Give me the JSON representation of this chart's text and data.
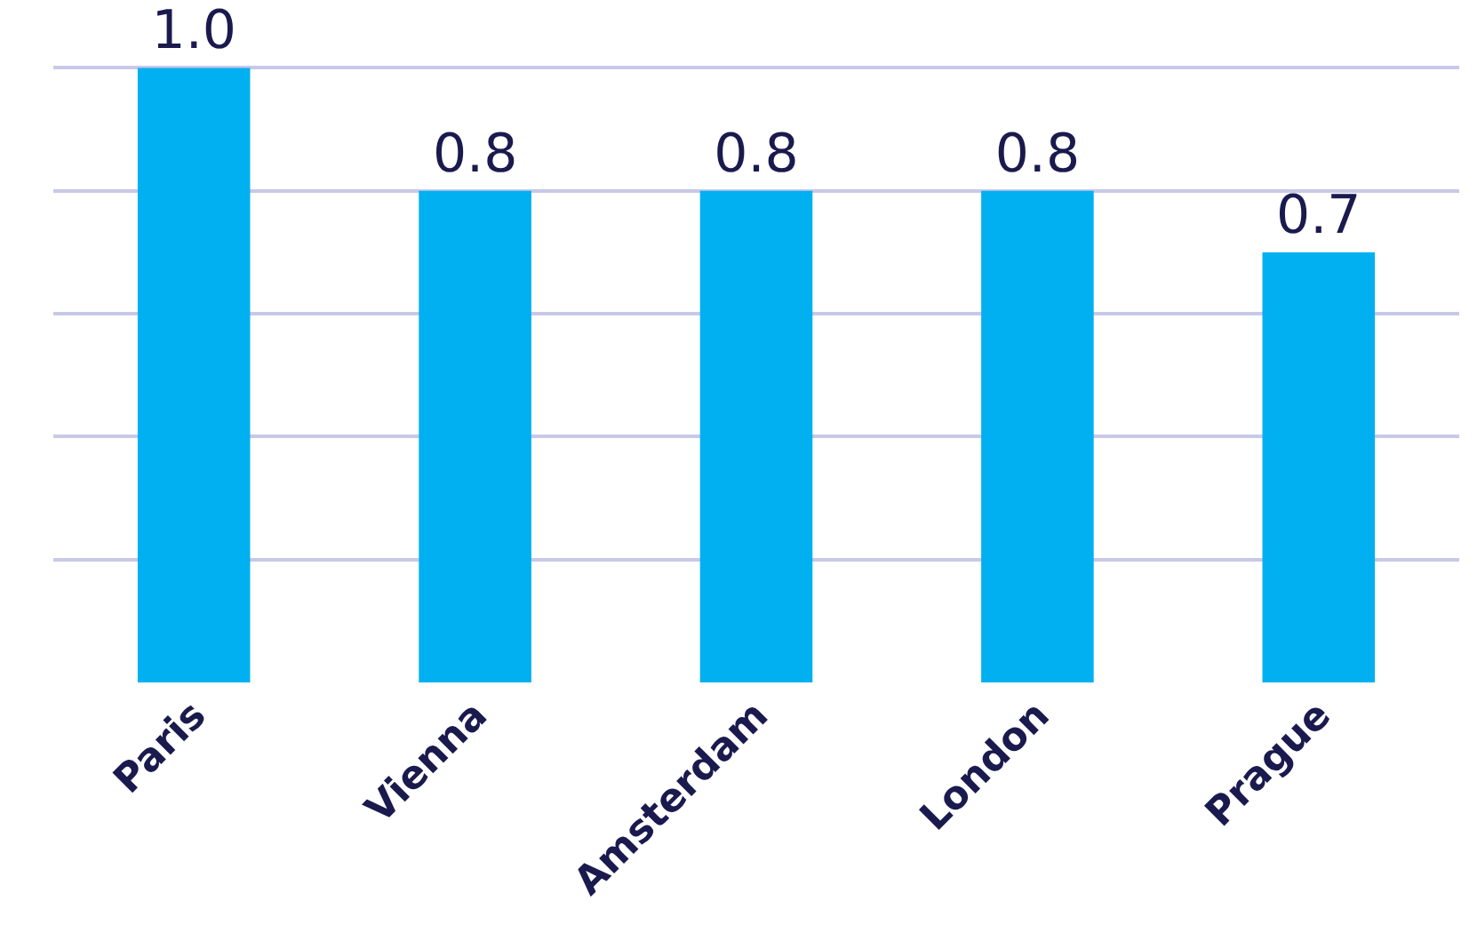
{
  "chart_data": {
    "type": "bar",
    "categories": [
      "Paris",
      "Vienna",
      "Amsterdam",
      "London",
      "Prague"
    ],
    "values": [
      1.0,
      0.8,
      0.8,
      0.8,
      0.7
    ],
    "value_labels": [
      "1.0",
      "0.8",
      "0.8",
      "0.8",
      "0.7"
    ],
    "color": "#00b0f0",
    "grid": "y",
    "tick_labels": "x"
  }
}
